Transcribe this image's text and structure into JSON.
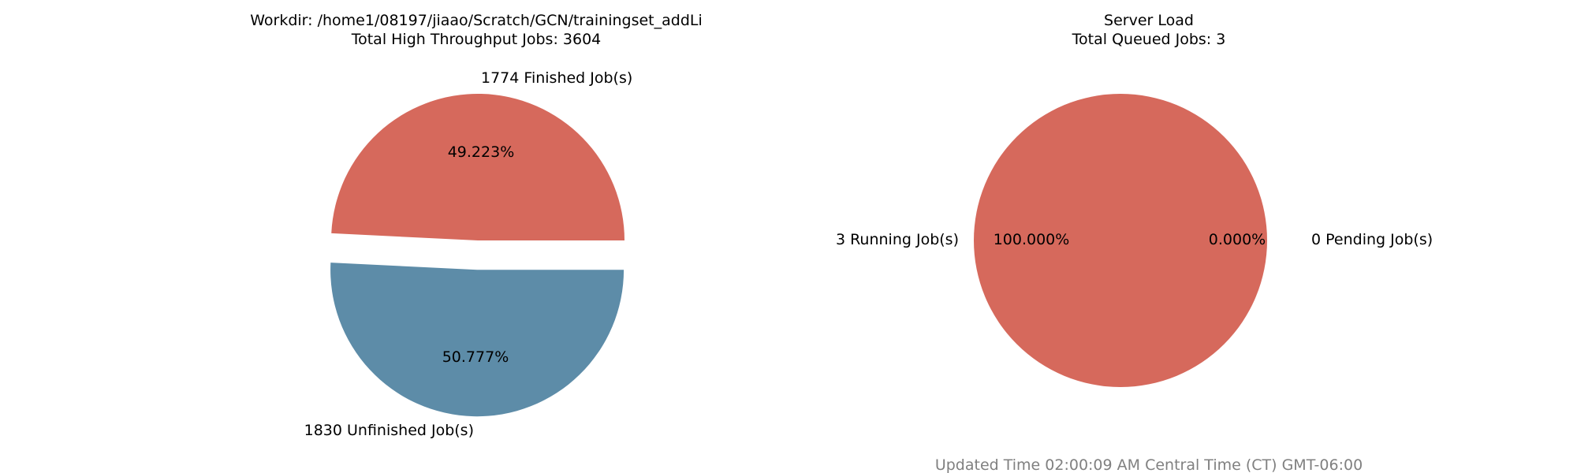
{
  "chart_data": [
    {
      "type": "pie",
      "title_lines": [
        "Workdir: /home1/08197/jiaao/Scratch/GCN/trainingset_addLi",
        "Total High Throughput Jobs: 3604"
      ],
      "slices": [
        {
          "name": "Finished",
          "value": 1774,
          "label": "1774 Finished Job(s)",
          "pct_label": "49.223%",
          "color": "#d6695c",
          "explode": 0.0
        },
        {
          "name": "Unfinished",
          "value": 1830,
          "label": "1830 Unfinished Job(s)",
          "pct_label": "50.777%",
          "color": "#5d8ca8",
          "explode": 0.2
        }
      ]
    },
    {
      "type": "pie",
      "title_lines": [
        "Server Load",
        "Total Queued Jobs: 3"
      ],
      "slices": [
        {
          "name": "Running",
          "value": 3,
          "label": "3 Running Job(s)",
          "pct_label": "100.000%",
          "color": "#d6695c"
        },
        {
          "name": "Pending",
          "value": 0,
          "label": "0 Pending Job(s)",
          "pct_label": "0.000%",
          "color": "#5d8ca8"
        }
      ]
    }
  ],
  "footer": "Updated Time 02:00:09 AM Central Time (CT) GMT-06:00"
}
